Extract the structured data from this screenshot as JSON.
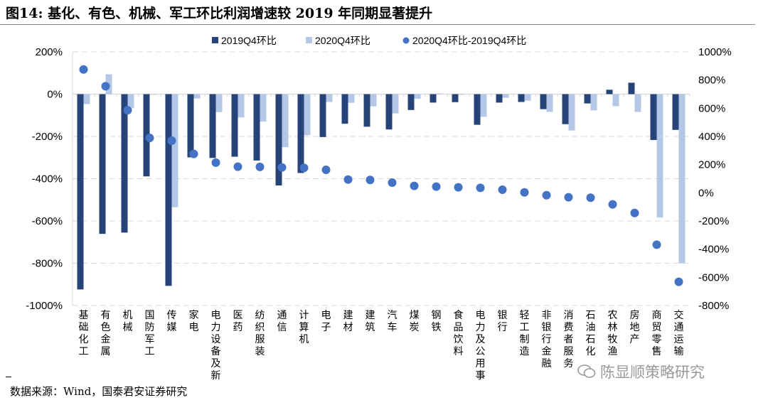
{
  "chart_data": {
    "type": "bar",
    "title": "图14: 基化、有色、机械、军工环比利润增速较 2019 年同期显著提升",
    "categories": [
      "基础化工",
      "有色金属",
      "机械",
      "国防军工",
      "传媒",
      "家电",
      "电力设备及新",
      "医药",
      "纺织服装",
      "通信",
      "计算机",
      "电子",
      "建材",
      "建筑",
      "汽车",
      "煤炭",
      "钢铁",
      "食品饮料",
      "电力及公用事",
      "银行",
      "轻工制造",
      "非银行金融",
      "消费者服务",
      "石油石化",
      "农林牧渔",
      "房地产",
      "商贸零售",
      "交通运输"
    ],
    "series": [
      {
        "name": "2019Q4环比",
        "axis": "left",
        "kind": "bar",
        "color": "#264478",
        "values": [
          -924,
          -661,
          -655,
          -389,
          -907,
          -299,
          -302,
          -296,
          -314,
          -432,
          -373,
          -203,
          -140,
          -154,
          -167,
          -75,
          -40,
          -38,
          -145,
          -40,
          -37,
          -71,
          -142,
          -44,
          21,
          54,
          -217,
          -169
        ]
      },
      {
        "name": "2020Q4环比",
        "axis": "left",
        "kind": "bar",
        "color": "#B4C7E7",
        "values": [
          -47,
          94,
          -66,
          -2,
          -535,
          -21,
          -85,
          -110,
          -130,
          -251,
          -194,
          -37,
          -41,
          -58,
          -91,
          -22,
          3,
          -1,
          -107,
          -17,
          -31,
          -84,
          -172,
          -77,
          -57,
          -84,
          -584,
          -800
        ]
      },
      {
        "name": "2020Q4环比-2019Q4环比",
        "axis": "right",
        "kind": "scatter",
        "color": "#4472C4",
        "values": [
          875,
          756,
          586,
          389,
          370,
          276,
          214,
          185,
          184,
          180,
          177,
          163,
          94,
          91,
          72,
          49,
          44,
          39,
          35,
          22,
          3,
          -17,
          -32,
          -35,
          -82,
          -143,
          -368,
          -632
        ]
      }
    ],
    "left_axis": {
      "ylim": [
        -1000,
        200
      ],
      "ticks": [
        "200%",
        "0%",
        "-200%",
        "-400%",
        "-600%",
        "-800%",
        "-1000%"
      ]
    },
    "right_axis": {
      "ylim": [
        -800,
        1000
      ],
      "ticks": [
        "1000%",
        "800%",
        "600%",
        "400%",
        "200%",
        "0%",
        "-200%",
        "-400%",
        "-600%",
        "-800%"
      ]
    },
    "grid": true,
    "legend": "top-center"
  },
  "source": "数据来源：Wind，国泰君安证券研究",
  "watermark": "陈显顺策略研究"
}
